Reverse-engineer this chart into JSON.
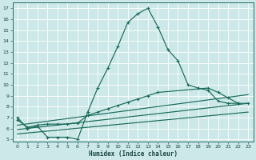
{
  "bg_color": "#cce8e8",
  "grid_color": "#aad4d4",
  "line_color": "#1a6b5a",
  "xlabel": "Humidex (Indice chaleur)",
  "xlim": [
    -0.5,
    23.5
  ],
  "ylim": [
    4.8,
    17.5
  ],
  "xticks": [
    0,
    1,
    2,
    3,
    4,
    5,
    6,
    7,
    8,
    9,
    10,
    11,
    12,
    13,
    14,
    15,
    16,
    17,
    18,
    19,
    20,
    21,
    22,
    23
  ],
  "yticks": [
    5,
    6,
    7,
    8,
    9,
    10,
    11,
    12,
    13,
    14,
    15,
    16,
    17
  ],
  "curve1_x": [
    0,
    1,
    2,
    3,
    4,
    5,
    6,
    7,
    8,
    9,
    10,
    11,
    12,
    13,
    14,
    15,
    16,
    17,
    18,
    19,
    20,
    21,
    22
  ],
  "curve1_y": [
    7.0,
    6.0,
    6.2,
    5.2,
    5.2,
    5.2,
    5.0,
    7.5,
    9.7,
    11.5,
    13.5,
    15.7,
    16.5,
    17.0,
    15.3,
    13.2,
    12.2,
    10.0,
    9.7,
    9.5,
    8.5,
    8.3,
    8.3
  ],
  "curve2_x": [
    0,
    1,
    2,
    3,
    4,
    5,
    6,
    7,
    8,
    9,
    10,
    11,
    12,
    13,
    14,
    19,
    20,
    21,
    22,
    23
  ],
  "curve2_y": [
    6.8,
    6.1,
    6.3,
    6.4,
    6.4,
    6.4,
    6.5,
    7.2,
    7.5,
    7.8,
    8.1,
    8.4,
    8.7,
    9.0,
    9.3,
    9.7,
    9.3,
    8.8,
    8.3,
    8.3
  ],
  "line3_x": [
    0,
    23
  ],
  "line3_y": [
    6.3,
    9.1
  ],
  "line4_x": [
    0,
    23
  ],
  "line4_y": [
    5.9,
    8.3
  ],
  "line5_x": [
    0,
    23
  ],
  "line5_y": [
    5.5,
    7.5
  ]
}
